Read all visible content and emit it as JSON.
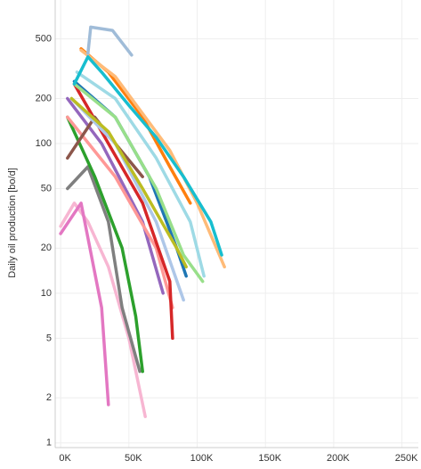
{
  "chart_data": {
    "type": "line",
    "ylabel": "Daily oil production [bo/d]",
    "log_y": true,
    "grid": true,
    "xlim": [
      -4000,
      262000
    ],
    "ylim": [
      0.93,
      910
    ],
    "xticks": [
      {
        "value": 0,
        "label": "0K"
      },
      {
        "value": 50000,
        "label": "50K"
      },
      {
        "value": 100000,
        "label": "100K"
      },
      {
        "value": 150000,
        "label": "150K"
      },
      {
        "value": 200000,
        "label": "200K"
      },
      {
        "value": 250000,
        "label": "250K"
      }
    ],
    "yticks": [
      1,
      2,
      5,
      10,
      20,
      50,
      100,
      200,
      500
    ],
    "series": [
      {
        "color": "#f7b6d2",
        "x": [
          0,
          10000,
          20000,
          35000,
          50000,
          62000
        ],
        "values": [
          28,
          40,
          30,
          15,
          5,
          1.5
        ]
      },
      {
        "color": "#e377c2",
        "x": [
          0,
          15000,
          30000,
          35000
        ],
        "values": [
          25,
          40,
          8,
          1.8
        ]
      },
      {
        "color": "#7f7f7f",
        "x": [
          5000,
          20000,
          35000,
          45000,
          58000
        ],
        "values": [
          50,
          70,
          30,
          8,
          3
        ]
      },
      {
        "color": "#2ca02c",
        "x": [
          5000,
          25000,
          45000,
          55000,
          60000
        ],
        "values": [
          150,
          60,
          20,
          7,
          3
        ]
      },
      {
        "color": "#9467bd",
        "x": [
          5000,
          30000,
          60000,
          75000
        ],
        "values": [
          200,
          100,
          30,
          10
        ]
      },
      {
        "color": "#ff9896",
        "x": [
          5000,
          40000,
          70000,
          82000
        ],
        "values": [
          150,
          60,
          20,
          8
        ]
      },
      {
        "color": "#d62728",
        "x": [
          10000,
          30000,
          60000,
          80000,
          82000
        ],
        "values": [
          250,
          120,
          40,
          12,
          5
        ]
      },
      {
        "color": "#8c564b",
        "x": [
          5000,
          25000,
          40000,
          60000
        ],
        "values": [
          80,
          150,
          100,
          60
        ]
      },
      {
        "color": "#aec7e8",
        "x": [
          8000,
          40000,
          70000,
          90000
        ],
        "values": [
          200,
          100,
          30,
          9
        ]
      },
      {
        "color": "#1f77b4",
        "x": [
          10000,
          40000,
          65000,
          85000,
          92000
        ],
        "values": [
          260,
          150,
          60,
          20,
          13
        ]
      },
      {
        "color": "#bcbd22",
        "x": [
          8000,
          35000,
          60000,
          85000,
          92000
        ],
        "values": [
          200,
          120,
          50,
          20,
          15
        ]
      },
      {
        "color": "#98df8a",
        "x": [
          10000,
          40000,
          70000,
          90000,
          104000
        ],
        "values": [
          250,
          150,
          50,
          18,
          12
        ]
      },
      {
        "color": "#9edae5",
        "x": [
          12000,
          40000,
          70000,
          95000,
          105000
        ],
        "values": [
          300,
          200,
          80,
          30,
          13
        ]
      },
      {
        "color": "#ff7f0e",
        "x": [
          15000,
          35000,
          60000,
          80000,
          95000
        ],
        "values": [
          430,
          300,
          150,
          70,
          40
        ]
      },
      {
        "color": "#ffbb78",
        "x": [
          15000,
          40000,
          80000,
          100000,
          120000
        ],
        "values": [
          420,
          280,
          90,
          40,
          15
        ]
      },
      {
        "color": "#17becf",
        "x": [
          10000,
          20000,
          30000,
          50000,
          70000,
          90000,
          110000,
          118000
        ],
        "values": [
          250,
          380,
          300,
          180,
          110,
          60,
          30,
          18
        ]
      },
      {
        "color": "#a0bcd8",
        "x": [
          20000,
          22000,
          38000,
          52000
        ],
        "values": [
          400,
          600,
          570,
          390
        ]
      }
    ]
  }
}
